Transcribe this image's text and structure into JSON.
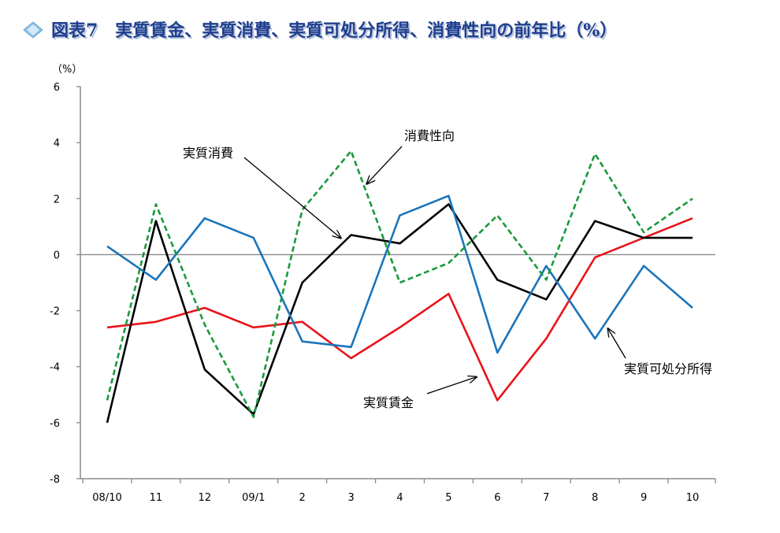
{
  "title": "図表7　実質賃金、実質消費、実質可処分所得、消費性向の前年比（%）",
  "colors": {
    "title": "#1f3f8f",
    "title_shadow": "#b9c4dc",
    "diamond": "#8fc1e3"
  },
  "chart_data": {
    "type": "line",
    "categories": [
      "08/10",
      "11",
      "12",
      "09/1",
      "2",
      "3",
      "4",
      "5",
      "6",
      "7",
      "8",
      "9",
      "10"
    ],
    "ylabel": "（%）",
    "ylim": [
      -8,
      6
    ],
    "yticks": [
      "6",
      "4",
      "2",
      "0",
      "-2",
      "-4",
      "-6",
      "-8"
    ],
    "grid": false,
    "zero_line": true,
    "series": [
      {
        "name": "実質賃金",
        "color": "#e8141b",
        "dash": "solid",
        "values": [
          -2.6,
          -2.4,
          -1.9,
          -2.6,
          -2.4,
          -3.7,
          -2.6,
          -1.4,
          -5.2,
          -3.0,
          -0.1,
          0.6,
          1.3
        ]
      },
      {
        "name": "実質消費",
        "color": "#000000",
        "dash": "solid",
        "values": [
          -6.0,
          1.2,
          -4.1,
          -5.7,
          -1.0,
          0.7,
          0.4,
          1.8,
          -0.9,
          -1.6,
          1.2,
          0.6,
          0.6
        ]
      },
      {
        "name": "実質可処分所得",
        "color": "#1b75bb",
        "dash": "solid",
        "values": [
          0.3,
          -0.9,
          1.3,
          0.6,
          -3.1,
          -3.3,
          1.4,
          2.1,
          -3.5,
          -0.4,
          -3.0,
          -0.4,
          -1.9
        ]
      },
      {
        "name": "消費性向",
        "color": "#1a9a3a",
        "dash": "dashed",
        "values": [
          -5.2,
          1.8,
          -2.5,
          -5.8,
          1.6,
          3.7,
          -1.0,
          -0.3,
          1.4,
          -0.9,
          3.6,
          0.8,
          2.0
        ]
      }
    ],
    "annotations": [
      {
        "text": "実質消費"
      },
      {
        "text": "消費性向"
      },
      {
        "text": "実質可処分所得"
      },
      {
        "text": "実質賃金"
      }
    ]
  }
}
